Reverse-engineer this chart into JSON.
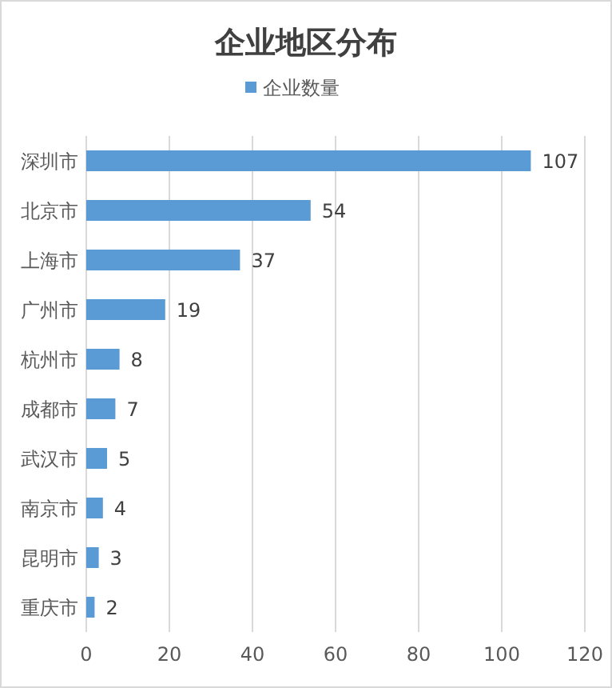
{
  "chart_data": {
    "type": "bar",
    "orientation": "horizontal",
    "title": "企业地区分布",
    "categories": [
      "深圳市",
      "北京市",
      "上海市",
      "广州市",
      "杭州市",
      "成都市",
      "武汉市",
      "南京市",
      "昆明市",
      "重庆市"
    ],
    "series": [
      {
        "name": "企业数量",
        "color": "#5b9bd5",
        "values": [
          107,
          54,
          37,
          19,
          8,
          7,
          5,
          4,
          3,
          2
        ]
      }
    ],
    "xlim": [
      0,
      120
    ],
    "xticks": [
      0,
      20,
      40,
      60,
      80,
      100,
      120
    ],
    "grid": "x",
    "legend": "top",
    "data_labels": true
  }
}
